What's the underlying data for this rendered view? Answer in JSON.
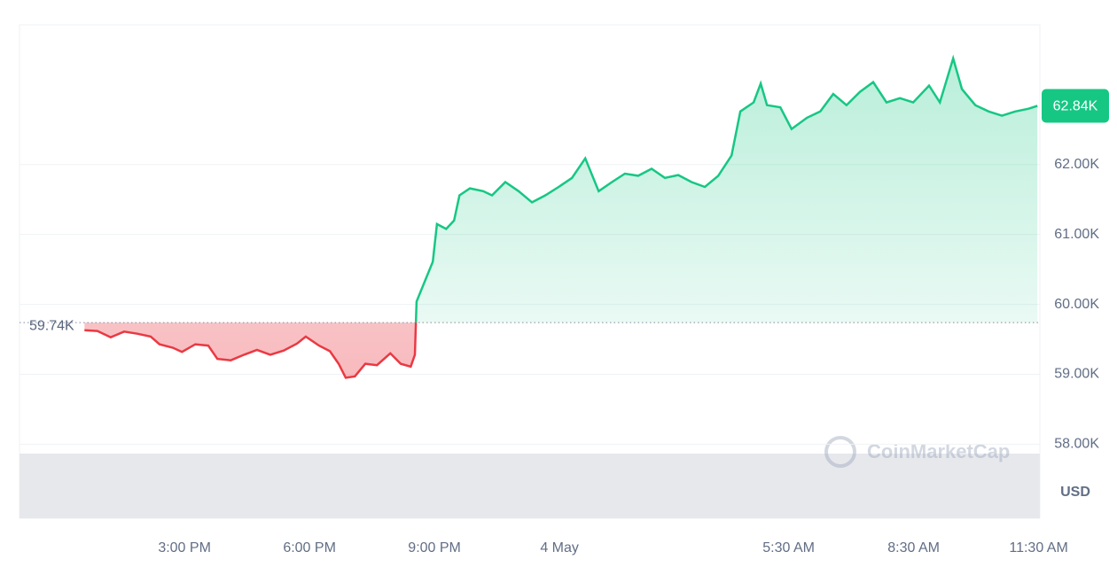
{
  "chart_data": {
    "type": "line",
    "x": [
      12.6,
      12.91,
      13.23,
      13.55,
      13.87,
      14.19,
      14.4,
      14.72,
      14.94,
      15.26,
      15.57,
      15.79,
      16.11,
      16.43,
      16.74,
      17.06,
      17.38,
      17.7,
      17.91,
      18.23,
      18.49,
      18.7,
      18.87,
      19.09,
      19.34,
      19.62,
      19.94,
      20.19,
      20.43,
      20.53,
      20.57,
      20.74,
      20.96,
      21.06,
      21.28,
      21.47,
      21.6,
      21.85,
      22.17,
      22.38,
      22.7,
      23.02,
      23.34,
      23.66,
      23.98,
      24.3,
      24.62,
      24.94,
      25.26,
      25.57,
      25.89,
      26.21,
      26.53,
      26.85,
      27.17,
      27.49,
      27.81,
      28.13,
      28.34,
      28.66,
      28.83,
      28.98,
      29.3,
      29.57,
      29.94,
      30.26,
      30.57,
      30.89,
      31.21,
      31.53,
      31.85,
      32.17,
      32.49,
      32.87,
      33.13,
      33.45,
      33.66,
      33.98,
      34.3,
      34.62,
      34.94,
      35.26,
      35.47
    ],
    "values": [
      59630,
      59620,
      59530,
      59610,
      59580,
      59540,
      59430,
      59380,
      59320,
      59430,
      59410,
      59220,
      59200,
      59280,
      59350,
      59280,
      59340,
      59440,
      59540,
      59410,
      59330,
      59150,
      58950,
      58970,
      59150,
      59130,
      59300,
      59150,
      59110,
      59280,
      60040,
      60290,
      60610,
      61150,
      61080,
      61200,
      61560,
      61660,
      61620,
      61560,
      61750,
      61620,
      61460,
      61560,
      61680,
      61810,
      62090,
      61620,
      61750,
      61870,
      61840,
      61940,
      61810,
      61850,
      61750,
      61680,
      61840,
      62130,
      62760,
      62890,
      63160,
      62850,
      62820,
      62510,
      62670,
      62760,
      63010,
      62850,
      63040,
      63180,
      62890,
      62950,
      62890,
      63130,
      62890,
      63520,
      63080,
      62850,
      62760,
      62700,
      62760,
      62800,
      62840
    ],
    "up_color": "#16c784",
    "down_color": "#ea3943",
    "baseline": {
      "value": 59740,
      "label": "59.74K"
    },
    "current_price": {
      "value": 62840,
      "label": "62.84K"
    },
    "xlim": [
      11.04,
      35.53
    ],
    "ylim": [
      56940,
      64000
    ],
    "xticks": [
      {
        "value": 15,
        "label": "3:00 PM"
      },
      {
        "value": 18,
        "label": "6:00 PM"
      },
      {
        "value": 21,
        "label": "9:00 PM"
      },
      {
        "value": 24,
        "label": "4 May"
      },
      {
        "value": 29.5,
        "label": "5:30 AM"
      },
      {
        "value": 32.5,
        "label": "8:30 AM"
      },
      {
        "value": 35.5,
        "label": "11:30 AM"
      }
    ],
    "yticks": [
      {
        "value": 58000,
        "label": "58.00K"
      },
      {
        "value": 59000,
        "label": "59.00K"
      },
      {
        "value": 60000,
        "label": "60.00K"
      },
      {
        "value": 61000,
        "label": "61.00K"
      },
      {
        "value": 62000,
        "label": "62.00K"
      }
    ],
    "currency": "USD",
    "watermark": "CoinMarketCap",
    "grid": true
  }
}
